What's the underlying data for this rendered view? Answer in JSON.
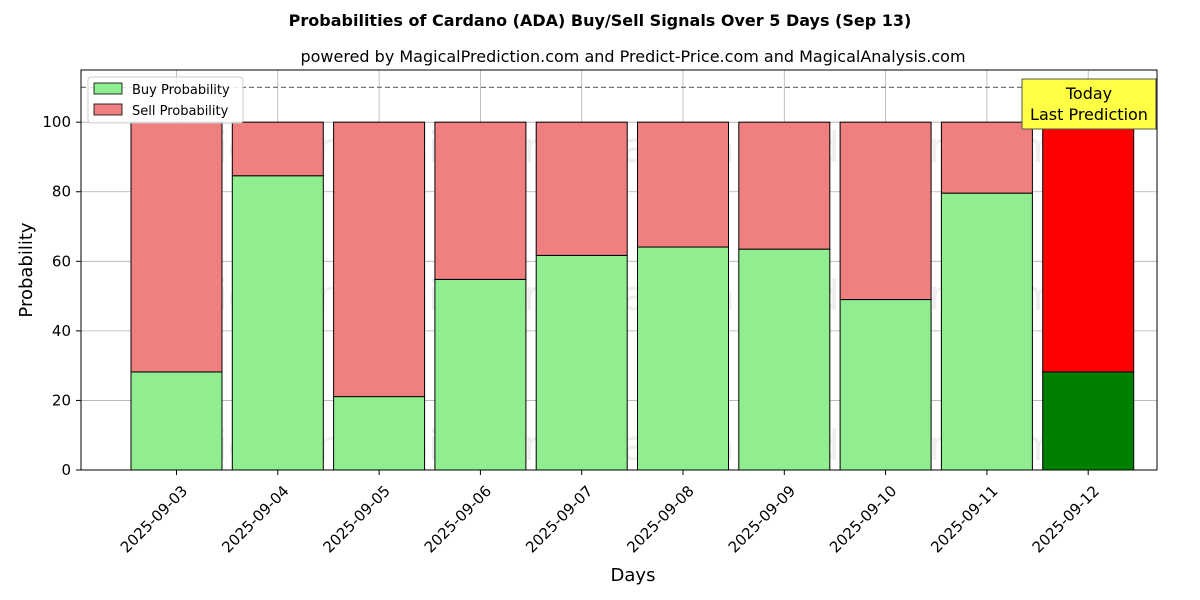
{
  "chart_data": {
    "type": "bar",
    "stacked": true,
    "title": "Probabilities of Cardano (ADA) Buy/Sell Signals Over 5 Days (Sep 13)",
    "subtitle": "powered by MagicalPrediction.com and Predict-Price.com and MagicalAnalysis.com",
    "xlabel": "Days",
    "ylabel": "Probability",
    "ylim": [
      0,
      115
    ],
    "yticks": [
      0,
      20,
      40,
      60,
      80,
      100
    ],
    "grid": true,
    "reference_line": 110,
    "legend_position": "top-left",
    "categories": [
      "2025-09-03",
      "2025-09-04",
      "2025-09-05",
      "2025-09-06",
      "2025-09-07",
      "2025-09-08",
      "2025-09-09",
      "2025-09-10",
      "2025-09-11",
      "2025-09-12"
    ],
    "series": [
      {
        "name": "Buy Probability",
        "color": "#90ee90",
        "highlight_color": "#008000",
        "values": [
          28.2,
          84.6,
          21.1,
          54.8,
          61.7,
          64.1,
          63.5,
          49.0,
          79.6,
          28.2
        ]
      },
      {
        "name": "Sell Probability",
        "color": "#f08080",
        "highlight_color": "#ff0000",
        "values": [
          71.8,
          15.4,
          78.9,
          45.2,
          38.3,
          35.9,
          36.5,
          51.0,
          20.4,
          71.8
        ]
      }
    ],
    "highlight_index": 9,
    "annotation": {
      "lines": [
        "Today",
        "Last Prediction"
      ],
      "background": "#ffff44"
    },
    "watermarks": [
      "MagicalAnalysis.com",
      "MagicalPrediction.com"
    ]
  }
}
